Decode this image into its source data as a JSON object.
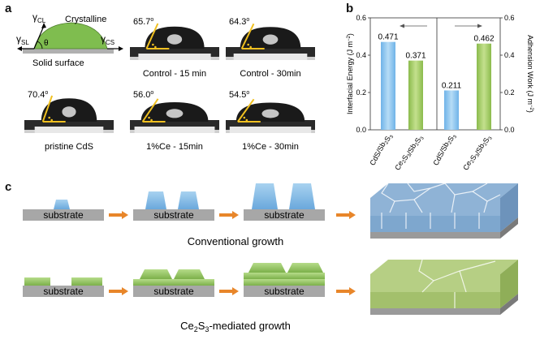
{
  "panel_a": {
    "label": "a",
    "schematic": {
      "gamma_cl": "γ",
      "gamma_cl_sub": "CL",
      "gamma_sl": "γ",
      "gamma_sl_sub": "SL",
      "gamma_cs": "γ",
      "gamma_cs_sub": "CS",
      "theta": "θ",
      "crystalline": "Crystalline",
      "surface": "Solid surface"
    },
    "droplets": [
      {
        "angle": "65.7",
        "deg": "o",
        "caption": "Control - 15 min"
      },
      {
        "angle": "64.3",
        "deg": "o",
        "caption": "Control - 30min"
      },
      {
        "angle": "70.4",
        "deg": "o",
        "caption": "pristine CdS"
      },
      {
        "angle": "56.0",
        "deg": "o",
        "caption": "1%Ce - 15min"
      },
      {
        "angle": "54.5",
        "deg": "o",
        "caption": "1%Ce - 30min"
      }
    ]
  },
  "panel_b": {
    "label": "b",
    "left_axis_label": "Interfacial Energy (J m",
    "right_axis_label": "Adhension Work (J m",
    "unit_sup": "−2",
    "unit_close": ")",
    "left_ticks": [
      "0.0",
      "0.2",
      "0.4",
      "0.6"
    ],
    "right_ticks": [
      "0.0",
      "0.2",
      "0.4",
      "0.6"
    ],
    "colors": {
      "blue": "#8ec8f0",
      "green": "#a3cc6a"
    }
  },
  "chart_data": {
    "type": "bar",
    "groups": [
      {
        "axis": "left",
        "categories": [
          "CdS/Sb2S3",
          "Ce2S3/Sb2S3"
        ],
        "values": [
          0.471,
          0.371
        ],
        "labels": [
          "0.471",
          "0.371"
        ]
      },
      {
        "axis": "right",
        "categories": [
          "CdS/Sb2S3",
          "Ce2S3/Sb2S3"
        ],
        "values": [
          0.211,
          0.462
        ],
        "labels": [
          "0.211",
          "0.462"
        ]
      }
    ],
    "ylim": [
      0,
      0.6
    ],
    "category_colors": [
      "#8ec8f0",
      "#a3cc6a"
    ]
  },
  "panel_c": {
    "label": "c",
    "substrate": "substrate",
    "conventional": "Conventional growth",
    "mediated_prefix": "Ce",
    "mediated_sub1": "2",
    "mediated_mid": "S",
    "mediated_sub2": "3",
    "mediated_suffix": "-mediated growth",
    "arrow_color": "#e8862a"
  }
}
